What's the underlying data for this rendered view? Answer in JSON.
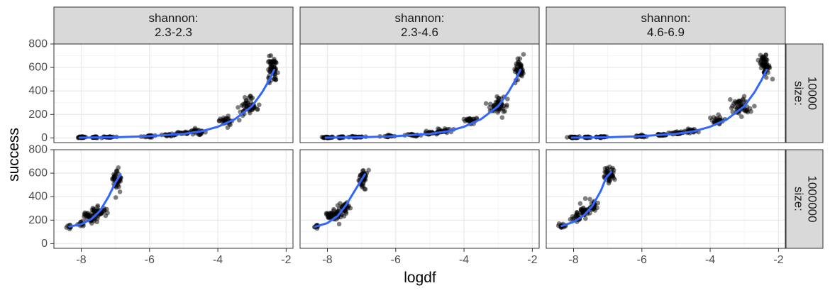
{
  "chart_data": {
    "type": "scatter",
    "layout": "facet_grid",
    "xlabel": "logdf",
    "ylabel": "success",
    "xlim": [
      -8.8,
      -1.8
    ],
    "ylim": [
      -40,
      800
    ],
    "x_ticks": [
      "-8",
      "-6",
      "-4",
      "-2"
    ],
    "y_ticks": [
      "0",
      "200",
      "400",
      "600",
      "800"
    ],
    "grid": true,
    "point_color": "#000000",
    "point_alpha": 0.5,
    "smooth_color": "#3366FF",
    "column_strips": [
      {
        "label": "shannon:",
        "range": "2.3-2.3"
      },
      {
        "label": "shannon:",
        "range": "2.3-4.6"
      },
      {
        "label": "shannon:",
        "range": "4.6-6.9"
      }
    ],
    "row_strips": [
      {
        "label": "size:",
        "value": "10000"
      },
      {
        "label": "size:",
        "value": "1000000"
      }
    ],
    "panels": [
      {
        "row": 0,
        "col": 0,
        "smooth": [
          [
            -8.05,
            2
          ],
          [
            -7.0,
            5
          ],
          [
            -6.0,
            15
          ],
          [
            -5.0,
            35
          ],
          [
            -4.5,
            55
          ],
          [
            -4.0,
            95
          ],
          [
            -3.5,
            160
          ],
          [
            -3.0,
            270
          ],
          [
            -2.7,
            390
          ],
          [
            -2.5,
            490
          ],
          [
            -2.35,
            580
          ]
        ],
        "clusters": [
          {
            "x": -8.0,
            "y": 5,
            "n": 30,
            "sx": 0.07,
            "sy": 3
          },
          {
            "x": -7.6,
            "y": 6,
            "n": 20,
            "sx": 0.05,
            "sy": 3
          },
          {
            "x": -7.2,
            "y": 8,
            "n": 20,
            "sx": 0.1,
            "sy": 3
          },
          {
            "x": -6.0,
            "y": 15,
            "n": 20,
            "sx": 0.12,
            "sy": 4
          },
          {
            "x": -5.4,
            "y": 25,
            "n": 20,
            "sx": 0.1,
            "sy": 5
          },
          {
            "x": -5.0,
            "y": 40,
            "n": 20,
            "sx": 0.1,
            "sy": 6
          },
          {
            "x": -4.6,
            "y": 55,
            "n": 25,
            "sx": 0.12,
            "sy": 10
          },
          {
            "x": -3.8,
            "y": 145,
            "n": 25,
            "sx": 0.1,
            "sy": 18
          },
          {
            "x": -3.1,
            "y": 260,
            "n": 50,
            "sx": 0.14,
            "sy": 38
          },
          {
            "x": -2.4,
            "y": 580,
            "n": 55,
            "sx": 0.07,
            "sy": 55
          }
        ]
      },
      {
        "row": 0,
        "col": 1,
        "smooth": [
          [
            -8.05,
            2
          ],
          [
            -7.0,
            5
          ],
          [
            -6.0,
            15
          ],
          [
            -5.0,
            35
          ],
          [
            -4.5,
            55
          ],
          [
            -4.0,
            95
          ],
          [
            -3.5,
            160
          ],
          [
            -3.0,
            270
          ],
          [
            -2.7,
            390
          ],
          [
            -2.5,
            490
          ],
          [
            -2.35,
            580
          ]
        ],
        "clusters": [
          {
            "x": -8.0,
            "y": 5,
            "n": 25,
            "sx": 0.07,
            "sy": 3
          },
          {
            "x": -7.6,
            "y": 6,
            "n": 20,
            "sx": 0.05,
            "sy": 3
          },
          {
            "x": -7.1,
            "y": 8,
            "n": 20,
            "sx": 0.1,
            "sy": 3
          },
          {
            "x": -6.2,
            "y": 15,
            "n": 15,
            "sx": 0.1,
            "sy": 4
          },
          {
            "x": -5.5,
            "y": 25,
            "n": 20,
            "sx": 0.1,
            "sy": 5
          },
          {
            "x": -5.0,
            "y": 40,
            "n": 20,
            "sx": 0.1,
            "sy": 6
          },
          {
            "x": -4.6,
            "y": 60,
            "n": 25,
            "sx": 0.12,
            "sy": 10
          },
          {
            "x": -3.8,
            "y": 150,
            "n": 25,
            "sx": 0.1,
            "sy": 18
          },
          {
            "x": -3.0,
            "y": 280,
            "n": 50,
            "sx": 0.14,
            "sy": 35
          },
          {
            "x": -2.4,
            "y": 590,
            "n": 45,
            "sx": 0.07,
            "sy": 50
          }
        ]
      },
      {
        "row": 0,
        "col": 2,
        "smooth": [
          [
            -8.05,
            2
          ],
          [
            -7.0,
            5
          ],
          [
            -6.0,
            15
          ],
          [
            -5.0,
            35
          ],
          [
            -4.5,
            55
          ],
          [
            -4.0,
            95
          ],
          [
            -3.5,
            160
          ],
          [
            -3.0,
            270
          ],
          [
            -2.7,
            390
          ],
          [
            -2.5,
            490
          ],
          [
            -2.35,
            580
          ]
        ],
        "clusters": [
          {
            "x": -8.0,
            "y": 5,
            "n": 30,
            "sx": 0.07,
            "sy": 3
          },
          {
            "x": -7.6,
            "y": 6,
            "n": 20,
            "sx": 0.05,
            "sy": 3
          },
          {
            "x": -7.2,
            "y": 8,
            "n": 20,
            "sx": 0.1,
            "sy": 3
          },
          {
            "x": -6.0,
            "y": 15,
            "n": 20,
            "sx": 0.12,
            "sy": 4
          },
          {
            "x": -5.4,
            "y": 25,
            "n": 20,
            "sx": 0.1,
            "sy": 5
          },
          {
            "x": -5.0,
            "y": 40,
            "n": 20,
            "sx": 0.1,
            "sy": 6
          },
          {
            "x": -4.6,
            "y": 60,
            "n": 25,
            "sx": 0.12,
            "sy": 10
          },
          {
            "x": -3.8,
            "y": 150,
            "n": 25,
            "sx": 0.1,
            "sy": 18
          },
          {
            "x": -3.1,
            "y": 270,
            "n": 50,
            "sx": 0.14,
            "sy": 38
          },
          {
            "x": -2.4,
            "y": 620,
            "n": 55,
            "sx": 0.07,
            "sy": 50
          }
        ]
      },
      {
        "row": 1,
        "col": 0,
        "smooth": [
          [
            -8.35,
            145
          ],
          [
            -8.0,
            165
          ],
          [
            -7.7,
            210
          ],
          [
            -7.45,
            280
          ],
          [
            -7.2,
            400
          ],
          [
            -7.0,
            520
          ],
          [
            -6.85,
            590
          ]
        ],
        "clusters": [
          {
            "x": -8.35,
            "y": 145,
            "n": 8,
            "sx": 0.04,
            "sy": 12
          },
          {
            "x": -8.0,
            "y": 170,
            "n": 10,
            "sx": 0.04,
            "sy": 15
          },
          {
            "x": -7.75,
            "y": 220,
            "n": 35,
            "sx": 0.1,
            "sy": 25
          },
          {
            "x": -7.5,
            "y": 275,
            "n": 35,
            "sx": 0.1,
            "sy": 25
          },
          {
            "x": -6.95,
            "y": 540,
            "n": 45,
            "sx": 0.07,
            "sy": 55
          }
        ]
      },
      {
        "row": 1,
        "col": 1,
        "smooth": [
          [
            -8.35,
            145
          ],
          [
            -8.0,
            175
          ],
          [
            -7.7,
            235
          ],
          [
            -7.45,
            330
          ],
          [
            -7.2,
            450
          ],
          [
            -7.0,
            545
          ],
          [
            -6.9,
            590
          ]
        ],
        "clusters": [
          {
            "x": -8.3,
            "y": 145,
            "n": 8,
            "sx": 0.05,
            "sy": 10
          },
          {
            "x": -7.95,
            "y": 240,
            "n": 15,
            "sx": 0.05,
            "sy": 15
          },
          {
            "x": -7.75,
            "y": 250,
            "n": 30,
            "sx": 0.08,
            "sy": 25
          },
          {
            "x": -7.5,
            "y": 300,
            "n": 30,
            "sx": 0.08,
            "sy": 30
          },
          {
            "x": -6.95,
            "y": 560,
            "n": 40,
            "sx": 0.06,
            "sy": 45
          }
        ]
      },
      {
        "row": 1,
        "col": 2,
        "smooth": [
          [
            -8.35,
            150
          ],
          [
            -8.0,
            185
          ],
          [
            -7.7,
            240
          ],
          [
            -7.45,
            320
          ],
          [
            -7.2,
            450
          ],
          [
            -7.05,
            560
          ],
          [
            -6.9,
            610
          ]
        ],
        "clusters": [
          {
            "x": -8.3,
            "y": 150,
            "n": 12,
            "sx": 0.06,
            "sy": 12
          },
          {
            "x": -7.9,
            "y": 225,
            "n": 20,
            "sx": 0.06,
            "sy": 20
          },
          {
            "x": -7.7,
            "y": 270,
            "n": 30,
            "sx": 0.08,
            "sy": 25
          },
          {
            "x": -7.45,
            "y": 320,
            "n": 25,
            "sx": 0.08,
            "sy": 25
          },
          {
            "x": -6.95,
            "y": 590,
            "n": 45,
            "sx": 0.08,
            "sy": 30
          }
        ]
      }
    ]
  }
}
